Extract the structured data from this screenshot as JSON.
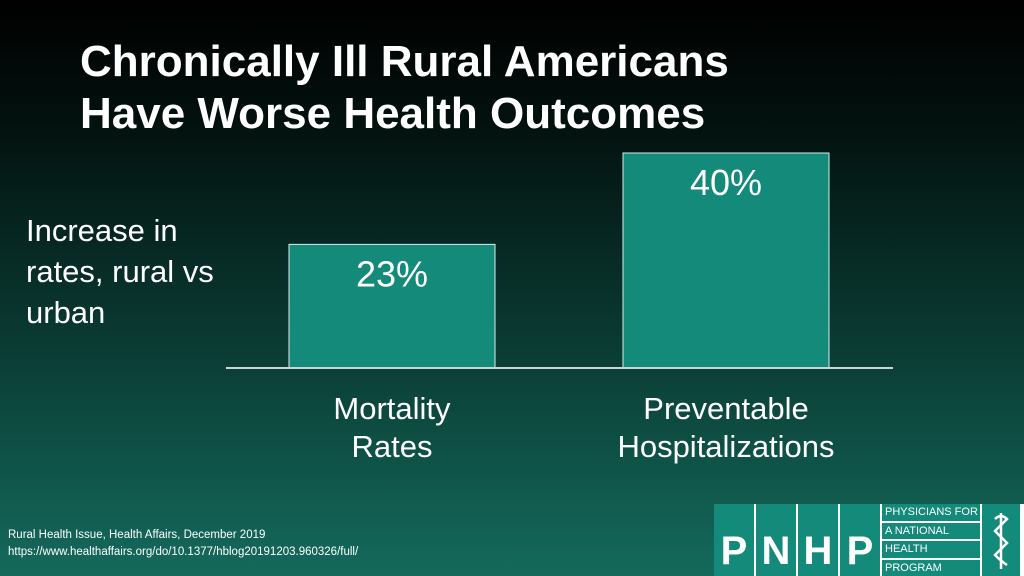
{
  "slide": {
    "title_line1": "Chronically Ill Rural Americans",
    "title_line2": "Have Worse Health Outcomes",
    "ylabel_line1": "Increase in",
    "ylabel_line2": "rates, rural vs",
    "ylabel_line3": "urban"
  },
  "chart_data": {
    "type": "bar",
    "title": "",
    "ylabel": "Increase in rates, rural vs urban",
    "categories": [
      {
        "line1": "Mortality",
        "line2": "Rates"
      },
      {
        "line1": "Preventable",
        "line2": "Hospitalizations"
      }
    ],
    "values": [
      23,
      40
    ],
    "value_labels": [
      "23%",
      "40%"
    ],
    "ylim": [
      0,
      40
    ],
    "grid": false,
    "bar_color": "#138a7a"
  },
  "source": {
    "line1": "Rural Health Issue, Health Affairs, December 2019",
    "line2": "https://www.healthaffairs.org/do/10.1377/hblog20191203.960326/full/"
  },
  "logo": {
    "letters": [
      "P",
      "N",
      "H",
      "P"
    ],
    "text_lines": [
      "PHYSICIANS FOR",
      "A NATIONAL",
      "HEALTH",
      "PROGRAM"
    ],
    "icon": "caduceus-icon"
  }
}
